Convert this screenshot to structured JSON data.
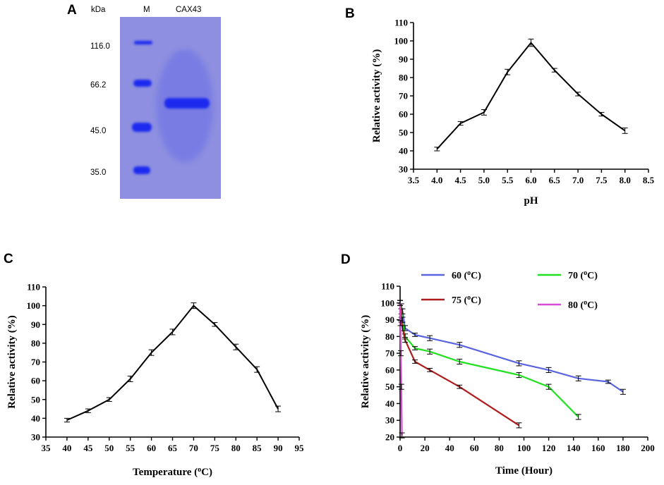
{
  "panel_a": {
    "letter": "A",
    "unit_label": "kDa",
    "lane_marker_label": "M",
    "lane_sample_label": "CAX43",
    "marker_sizes": [
      "116.0",
      "66.2",
      "45.0",
      "35.0"
    ],
    "colors": {
      "gel": "#8e8fe0",
      "band": "#1f2bf0"
    }
  },
  "chart_data": [
    {
      "panel": "B",
      "type": "line",
      "xlabel": "pH",
      "ylabel": "Relative activity (%)",
      "xlim": [
        3.5,
        8.5
      ],
      "ylim": [
        30,
        110
      ],
      "xticks": [
        3.5,
        4.0,
        4.5,
        5.0,
        5.5,
        6.0,
        6.5,
        7.0,
        7.5,
        8.0,
        8.5
      ],
      "yticks": [
        30,
        40,
        50,
        60,
        70,
        80,
        90,
        100,
        110
      ],
      "xtick_decimals": 1,
      "grid": false,
      "series": [
        {
          "name": "activity",
          "color": "#000000",
          "x": [
            4.0,
            4.5,
            5.0,
            5.5,
            6.0,
            6.5,
            7.0,
            7.5,
            8.0
          ],
          "values": [
            41,
            55,
            61,
            83,
            99,
            84,
            71,
            60,
            51
          ],
          "errors": [
            1.0,
            1.0,
            1.5,
            1.5,
            2.0,
            1.0,
            1.0,
            1.0,
            1.5
          ]
        }
      ]
    },
    {
      "panel": "C",
      "type": "line",
      "xlabel": "Temperature (°C)",
      "xlabel_parts": [
        "Temperature (",
        "o",
        "C)"
      ],
      "ylabel": "Relative activity (%)",
      "xlim": [
        35,
        95
      ],
      "ylim": [
        30,
        110
      ],
      "xticks": [
        35,
        40,
        45,
        50,
        55,
        60,
        65,
        70,
        75,
        80,
        85,
        90,
        95
      ],
      "yticks": [
        30,
        40,
        50,
        60,
        70,
        80,
        90,
        100,
        110
      ],
      "xtick_decimals": 0,
      "grid": false,
      "series": [
        {
          "name": "activity",
          "color": "#000000",
          "x": [
            40,
            45,
            50,
            55,
            60,
            65,
            70,
            75,
            80,
            85,
            90
          ],
          "values": [
            39,
            44,
            50,
            61,
            75,
            86,
            100,
            90,
            78,
            66,
            45
          ],
          "errors": [
            1.0,
            1.0,
            1.0,
            1.5,
            1.5,
            1.5,
            1.5,
            1.0,
            1.5,
            1.5,
            1.5
          ]
        }
      ]
    },
    {
      "panel": "D",
      "type": "line",
      "xlabel": "Time (Hour)",
      "ylabel": "Relative activity (%)",
      "xlim": [
        0,
        200
      ],
      "ylim": [
        20,
        110
      ],
      "xticks": [
        0,
        20,
        40,
        60,
        80,
        100,
        120,
        140,
        160,
        180,
        200
      ],
      "yticks": [
        20,
        30,
        40,
        50,
        60,
        70,
        80,
        90,
        100,
        110
      ],
      "xtick_decimals": 0,
      "grid": false,
      "legend": "top",
      "series": [
        {
          "name": "60 (°C)",
          "label_parts": [
            "60 (",
            "o",
            "C)"
          ],
          "color": "#5a63e0",
          "x": [
            0,
            1,
            2,
            4,
            12,
            24,
            48,
            96,
            120,
            144,
            168,
            180
          ],
          "values": [
            100,
            98,
            95,
            85,
            81,
            79,
            75,
            64,
            60,
            55,
            53,
            47
          ],
          "errors": [
            1.5,
            1.5,
            1.5,
            1.5,
            1.0,
            1.5,
            1.5,
            1.5,
            1.5,
            1.5,
            1.0,
            1.5
          ]
        },
        {
          "name": "70 (°C)",
          "label_parts": [
            "70 (",
            "o",
            "C)"
          ],
          "color": "#22e022",
          "x": [
            0,
            1,
            2,
            4,
            12,
            24,
            48,
            96,
            120,
            144
          ],
          "values": [
            100,
            95,
            90,
            80,
            73,
            71,
            65,
            57,
            50,
            32
          ],
          "errors": [
            1.5,
            1.5,
            1.5,
            1.5,
            1.0,
            1.5,
            1.5,
            1.5,
            1.5,
            1.5
          ]
        },
        {
          "name": "75 (°C)",
          "label_parts": [
            "75 (",
            "o",
            "C)"
          ],
          "color": "#b01c1c",
          "x": [
            0,
            1,
            2,
            4,
            12,
            24,
            48,
            96
          ],
          "values": [
            100,
            90,
            85,
            78,
            65,
            60,
            50,
            27
          ],
          "errors": [
            1.5,
            1.5,
            1.5,
            1.5,
            1.0,
            1.0,
            1.0,
            1.5
          ]
        },
        {
          "name": "80 (°C)",
          "label_parts": [
            "80 (",
            "o",
            "C)"
          ],
          "color": "#d24fd2",
          "x": [
            0,
            0.3,
            0.6,
            1,
            1.5
          ],
          "values": [
            100,
            88,
            70,
            50,
            21
          ],
          "errors": [
            1.5,
            1.5,
            1.5,
            1.5,
            1.5
          ]
        }
      ]
    }
  ]
}
